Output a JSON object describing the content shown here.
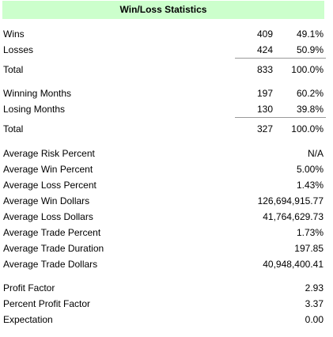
{
  "title": "Win/Loss Statistics",
  "trades": {
    "wins": {
      "label": "Wins",
      "count": "409",
      "pct": "49.1%"
    },
    "losses": {
      "label": "Losses",
      "count": "424",
      "pct": "50.9%"
    },
    "total": {
      "label": "Total",
      "count": "833",
      "pct": "100.0%"
    }
  },
  "months": {
    "winning": {
      "label": "Winning Months",
      "count": "197",
      "pct": "60.2%"
    },
    "losing": {
      "label": "Losing Months",
      "count": "130",
      "pct": "39.8%"
    },
    "total": {
      "label": "Total",
      "count": "327",
      "pct": "100.0%"
    }
  },
  "averages": [
    {
      "label": "Average Risk Percent",
      "value": "N/A"
    },
    {
      "label": "Average Win Percent",
      "value": "5.00%"
    },
    {
      "label": "Average Loss Percent",
      "value": "1.43%"
    },
    {
      "label": "Average Win Dollars",
      "value": "126,694,915.77"
    },
    {
      "label": "Average Loss Dollars",
      "value": "41,764,629.73"
    },
    {
      "label": "Average Trade Percent",
      "value": "1.73%"
    },
    {
      "label": "Average Trade Duration",
      "value": "197.85"
    },
    {
      "label": "Average Trade Dollars",
      "value": "40,948,400.41"
    }
  ],
  "factors": [
    {
      "label": "Profit Factor",
      "value": "2.93"
    },
    {
      "label": "Percent Profit Factor",
      "value": "3.37"
    },
    {
      "label": "Expectation",
      "value": "0.00"
    }
  ]
}
